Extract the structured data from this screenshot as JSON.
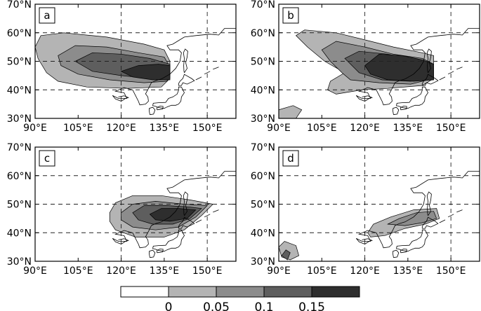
{
  "panels": [
    {
      "label": "a"
    },
    {
      "label": "b"
    },
    {
      "label": "c"
    },
    {
      "label": "d"
    }
  ],
  "axes": {
    "lat_ticks": [
      "70°N",
      "60°N",
      "50°N",
      "40°N",
      "30°N"
    ],
    "lon_ticks": [
      "90°E",
      "105°E",
      "120°E",
      "135°E",
      "150°E"
    ],
    "lon_range": [
      90,
      160
    ],
    "lat_range": [
      30,
      70
    ]
  },
  "colorbar": {
    "labels": [
      "0",
      "0.05",
      "0.1",
      "0.15"
    ],
    "colors": [
      "#ffffff",
      "#b4b4b4",
      "#8c8c8c",
      "#5e5e5e",
      "#2e2e2e"
    ]
  }
}
